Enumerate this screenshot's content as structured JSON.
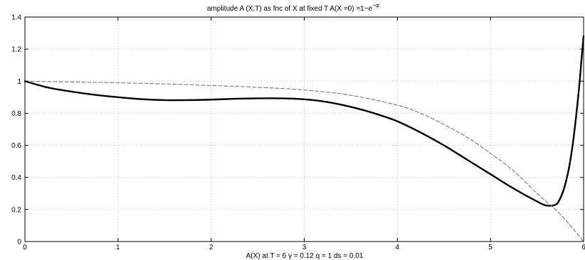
{
  "chart_data": {
    "type": "line",
    "title": "amplitude A (X,T) as fnc of X at fixed T    A(X =0) =1−e",
    "title_superscript": "−qt",
    "xlabel": "A(X) at T = 6  γ = 0.12  q = 1  ds = 0.01",
    "ylabel": "",
    "xlim": [
      0,
      6
    ],
    "ylim": [
      0,
      1.4
    ],
    "xticks": [
      "0",
      "1",
      "2",
      "3",
      "4",
      "5",
      "6"
    ],
    "yticks": [
      "0",
      "0.2",
      "0.4",
      "0.6",
      "0.8",
      "1",
      "1.2",
      "1.4"
    ],
    "grid": true,
    "series": [
      {
        "style": "solid-thick",
        "color": "#000000",
        "x": [
          0,
          0.25,
          0.5,
          0.75,
          1.0,
          1.25,
          1.5,
          1.75,
          2.0,
          2.25,
          2.5,
          2.75,
          3.0,
          3.25,
          3.5,
          3.75,
          4.0,
          4.25,
          4.5,
          4.75,
          5.0,
          5.25,
          5.5,
          5.6,
          5.7,
          5.75,
          5.8,
          5.85,
          5.9,
          5.95,
          5.98,
          6.0
        ],
        "y": [
          1.0,
          0.96,
          0.935,
          0.915,
          0.9,
          0.888,
          0.882,
          0.882,
          0.885,
          0.89,
          0.893,
          0.893,
          0.887,
          0.87,
          0.84,
          0.8,
          0.75,
          0.68,
          0.6,
          0.51,
          0.42,
          0.33,
          0.25,
          0.225,
          0.23,
          0.27,
          0.35,
          0.48,
          0.68,
          0.95,
          1.15,
          1.28
        ]
      },
      {
        "style": "dashed",
        "color": "#777777",
        "x": [
          0,
          0.5,
          1.0,
          1.5,
          2.0,
          2.5,
          3.0,
          3.5,
          4.0,
          4.25,
          4.5,
          4.75,
          5.0,
          5.25,
          5.5,
          5.75,
          6.0
        ],
        "y": [
          1.0,
          0.995,
          0.99,
          0.983,
          0.973,
          0.962,
          0.945,
          0.912,
          0.85,
          0.8,
          0.73,
          0.65,
          0.55,
          0.44,
          0.3,
          0.17,
          0.0
        ]
      }
    ]
  }
}
